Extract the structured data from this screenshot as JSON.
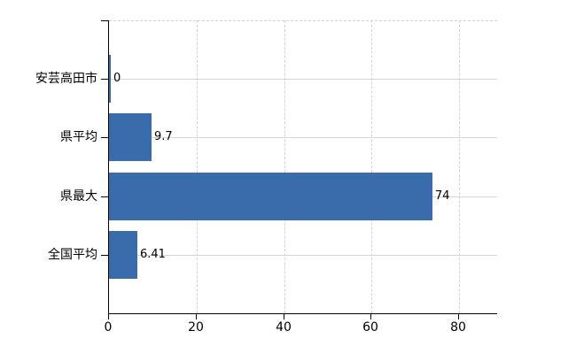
{
  "chart_data": {
    "type": "bar",
    "orientation": "horizontal",
    "title": "",
    "xlabel": "",
    "ylabel": "",
    "categories": [
      "安芸高田市",
      "県平均",
      "県最大",
      "全国平均"
    ],
    "values": [
      0,
      9.7,
      74,
      6.41
    ],
    "value_labels": [
      "0",
      "9.7",
      "74",
      "6.41"
    ],
    "x_ticks": [
      0,
      20,
      40,
      60,
      80
    ],
    "x_tick_labels": [
      "0",
      "20",
      "40",
      "60",
      "80"
    ],
    "xlim": [
      0,
      88.7
    ],
    "grid": "on",
    "legend": "none",
    "colors": {
      "bar": "#3a6bab",
      "h_gridline": "#cfd9ce",
      "v_gridline": "#d6ced6",
      "axis": "#000000",
      "text": "#000000",
      "background": "#ffffff"
    }
  }
}
